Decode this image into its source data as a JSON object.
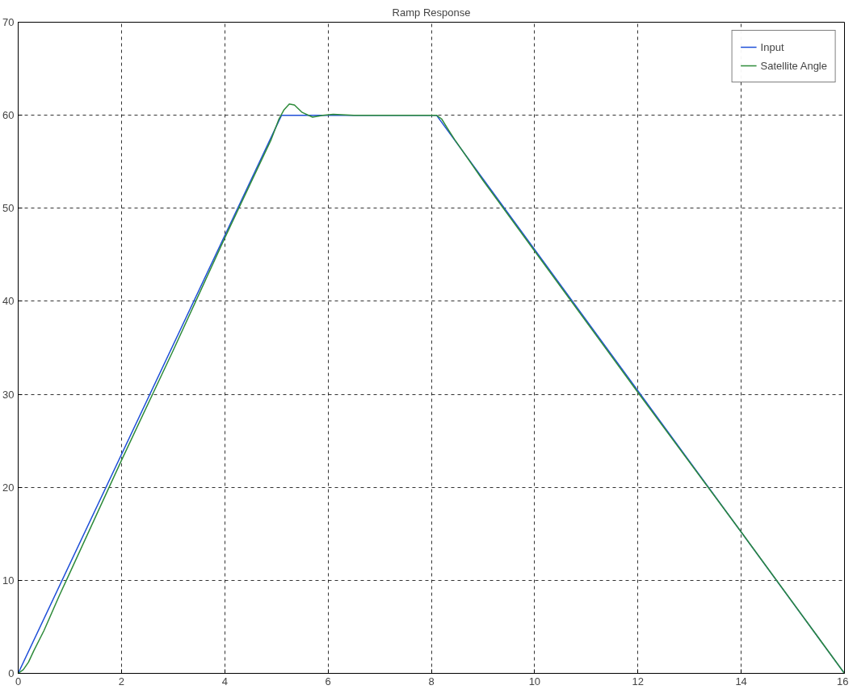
{
  "chart_data": {
    "type": "line",
    "title": "Ramp Response",
    "xlim": [
      0,
      16
    ],
    "xticks": [
      0,
      2,
      4,
      6,
      8,
      10,
      12,
      14,
      16
    ],
    "ylim": [
      0,
      70
    ],
    "yticks": [
      0,
      10,
      20,
      30,
      40,
      50,
      60,
      70
    ],
    "grid": true,
    "legend": "top right",
    "series": [
      {
        "name": "Input",
        "color": "#1f4fd8",
        "x": [
          0,
          5.1,
          8.1,
          16
        ],
        "values": [
          0,
          60,
          60,
          0
        ]
      },
      {
        "name": "Satellite Angle",
        "color": "#2e8b3a",
        "x": [
          0,
          0.1,
          0.2,
          0.3,
          0.5,
          0.8,
          1.0,
          2.0,
          3.0,
          4.0,
          4.9,
          5.05,
          5.15,
          5.25,
          5.35,
          5.5,
          5.7,
          5.9,
          6.1,
          6.5,
          8.1,
          8.2,
          8.3,
          8.45,
          8.6,
          9.0,
          10.0,
          12.0,
          14.0,
          16.0
        ],
        "values": [
          0,
          0.4,
          1.2,
          2.4,
          4.6,
          8.4,
          10.8,
          22.9,
          34.7,
          46.8,
          57.4,
          59.6,
          60.6,
          61.2,
          61.1,
          60.3,
          59.8,
          60.0,
          60.1,
          60.0,
          60.0,
          59.6,
          58.7,
          57.4,
          56.2,
          53.0,
          45.4,
          30.2,
          15.2,
          0
        ]
      }
    ]
  }
}
